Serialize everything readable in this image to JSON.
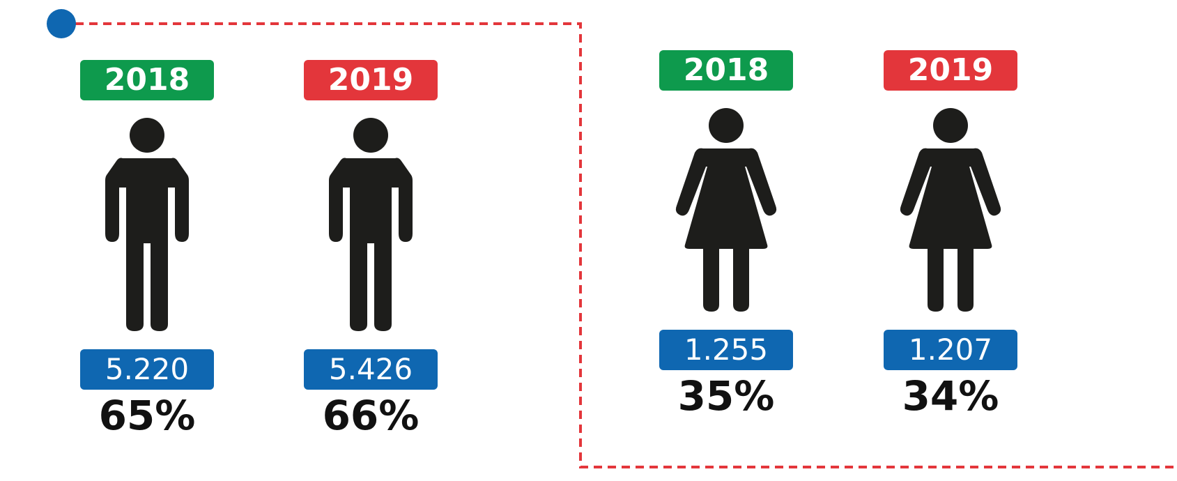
{
  "chart_data": {
    "type": "pictogram",
    "title": "",
    "colors": {
      "year_2018": "#0e9a4d",
      "year_2019": "#e3363b",
      "count": "#0f67b1",
      "connector": "#e3363b",
      "node": "#0f67b1",
      "icon": "#1d1d1b"
    },
    "groups": [
      {
        "figure": "male",
        "items": [
          {
            "year": "2018",
            "count": "5.220",
            "value": 5220,
            "percent": "65%",
            "percent_value": 65
          },
          {
            "year": "2019",
            "count": "5.426",
            "value": 5426,
            "percent": "66%",
            "percent_value": 66
          }
        ]
      },
      {
        "figure": "female",
        "items": [
          {
            "year": "2018",
            "count": "1.255",
            "value": 1255,
            "percent": "35%",
            "percent_value": 35
          },
          {
            "year": "2019",
            "count": "1.207",
            "value": 1207,
            "percent": "34%",
            "percent_value": 34
          }
        ]
      }
    ]
  }
}
